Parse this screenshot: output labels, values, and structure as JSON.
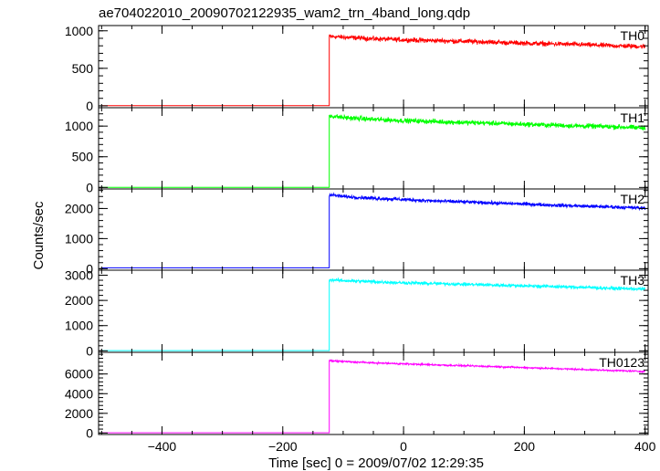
{
  "chart_data": {
    "type": "line",
    "title": "ae704022010_20090702122935_wam2_trn_4band_long.qdp",
    "xlabel": "Time [sec] 0 = 2009/07/02 12:29:35",
    "ylabel": "Counts/sec",
    "xlim": [
      -505,
      405
    ],
    "x_ticks": [
      -400,
      -200,
      0,
      200,
      400
    ],
    "x_tick_labels": [
      "−400",
      "−200",
      "0",
      "200",
      "400"
    ],
    "grid": false,
    "panels": [
      {
        "name": "TH0",
        "color": "#ff0000",
        "ylim": [
          -25,
          1070
        ],
        "y_ticks": [
          0,
          500,
          1000
        ],
        "y_tick_labels": [
          "0",
          "500",
          "1000"
        ],
        "series": {
          "baseline": 3,
          "onset": -123,
          "x": [
            -123,
            -100,
            -50,
            0,
            50,
            100,
            150,
            200,
            250,
            300,
            350,
            400
          ],
          "y": [
            925,
            915,
            895,
            880,
            870,
            860,
            848,
            835,
            825,
            815,
            800,
            790
          ],
          "noise": 30
        }
      },
      {
        "name": "TH1",
        "color": "#00ff00",
        "ylim": [
          -25,
          1300
        ],
        "y_ticks": [
          0,
          500,
          1000
        ],
        "y_tick_labels": [
          "0",
          "500",
          "1000"
        ],
        "series": {
          "baseline": 2,
          "onset": -123,
          "x": [
            -123,
            -100,
            -50,
            0,
            50,
            100,
            150,
            200,
            250,
            300,
            350,
            400
          ],
          "y": [
            1170,
            1140,
            1110,
            1090,
            1075,
            1060,
            1045,
            1030,
            1015,
            1000,
            990,
            970
          ],
          "noise": 38
        }
      },
      {
        "name": "TH2",
        "color": "#0000ff",
        "ylim": [
          -50,
          2650
        ],
        "y_ticks": [
          0,
          1000,
          2000
        ],
        "y_tick_labels": [
          "0",
          "1000",
          "2000"
        ],
        "series": {
          "baseline": 30,
          "onset": -123,
          "x": [
            -123,
            -100,
            -50,
            0,
            50,
            100,
            150,
            200,
            250,
            300,
            350,
            400
          ],
          "y": [
            2460,
            2400,
            2340,
            2300,
            2250,
            2220,
            2180,
            2150,
            2110,
            2080,
            2050,
            2010
          ],
          "noise": 55
        }
      },
      {
        "name": "TH3",
        "color": "#00ffff",
        "ylim": [
          -60,
          3200
        ],
        "y_ticks": [
          0,
          1000,
          2000,
          3000
        ],
        "y_tick_labels": [
          "0",
          "1000",
          "2000",
          "3000"
        ],
        "series": {
          "baseline": 10,
          "onset": -123,
          "x": [
            -123,
            -100,
            -50,
            0,
            50,
            100,
            150,
            200,
            250,
            300,
            350,
            400
          ],
          "y": [
            2820,
            2790,
            2740,
            2700,
            2670,
            2640,
            2610,
            2580,
            2550,
            2520,
            2480,
            2450
          ],
          "noise": 60
        }
      },
      {
        "name": "TH0123",
        "color": "#ff00ff",
        "ylim": [
          -150,
          8200
        ],
        "y_ticks": [
          0,
          2000,
          4000,
          6000
        ],
        "y_tick_labels": [
          "0",
          "2000",
          "4000",
          "6000"
        ],
        "series": {
          "baseline": 30,
          "onset": -123,
          "x": [
            -123,
            -100,
            -50,
            0,
            50,
            100,
            150,
            200,
            250,
            300,
            350,
            400
          ],
          "y": [
            7350,
            7270,
            7130,
            7030,
            6930,
            6840,
            6750,
            6650,
            6550,
            6450,
            6350,
            6250
          ],
          "noise": 80
        }
      }
    ]
  }
}
